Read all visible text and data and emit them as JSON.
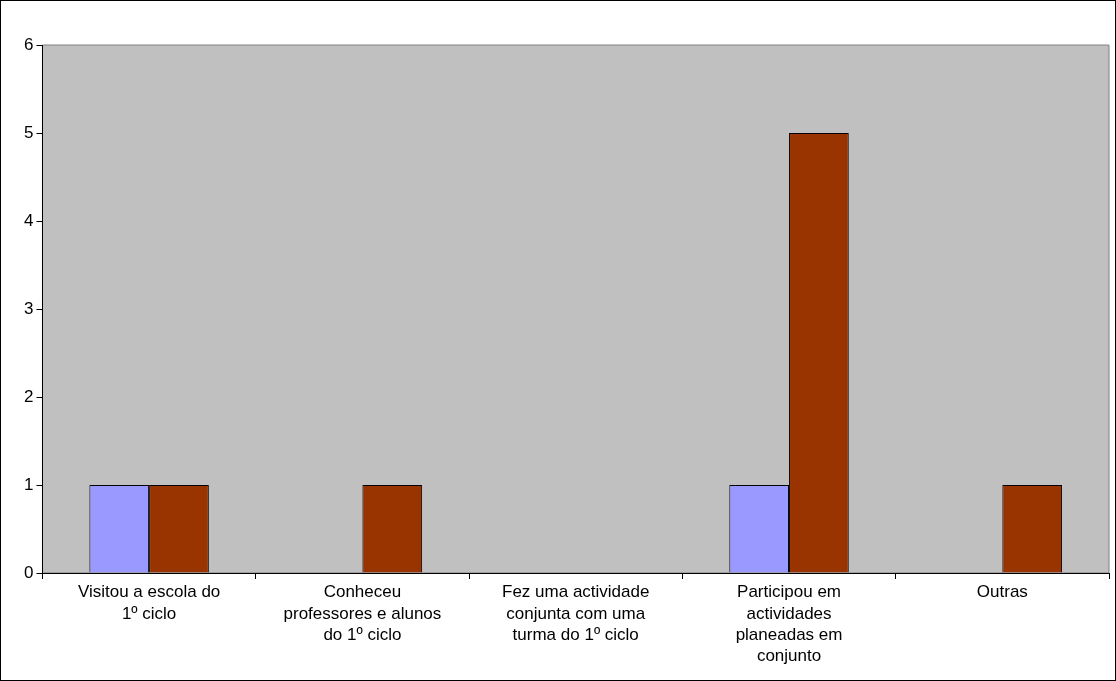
{
  "chart_data": {
    "type": "bar",
    "categories": [
      "Visitou a escola do 1º ciclo",
      "Conheceu professores e alunos do 1º ciclo",
      "Fez uma actividade conjunta com uma turma do 1º ciclo",
      "Participou em actividades planeadas em conjunto",
      "Outras"
    ],
    "series": [
      {
        "color": "#9999ff",
        "values": [
          1,
          0,
          0,
          1,
          0
        ]
      },
      {
        "color": "#993300",
        "values": [
          1,
          1,
          0,
          5,
          1
        ]
      }
    ],
    "ylim": [
      0,
      6
    ],
    "yticks": [
      0,
      1,
      2,
      3,
      4,
      5,
      6
    ]
  }
}
